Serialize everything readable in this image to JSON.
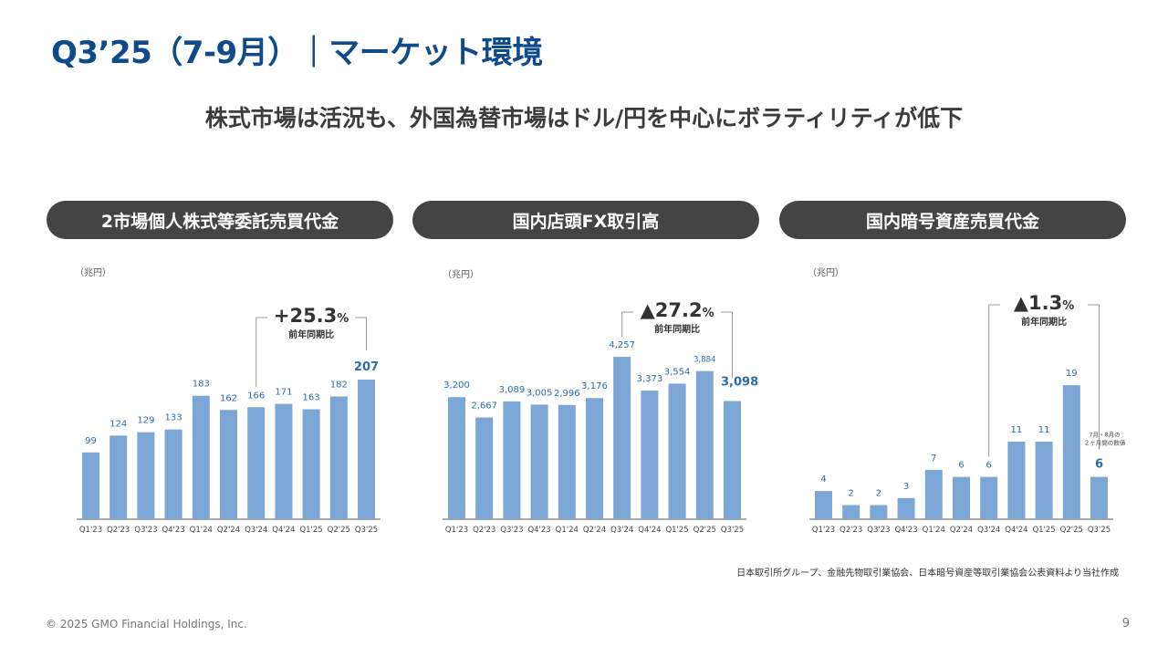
{
  "header": {
    "title": "Q3’25（7-9月）｜マーケット環境",
    "subtitle": "株式市場は活況も、外国為替市場はドル/円を中心にボラティリティが低下"
  },
  "colors": {
    "bar": "#7ba6d6",
    "label": "#2b6cb0",
    "title": "#0f4a8a",
    "pill": "#444444"
  },
  "chart_data": [
    {
      "type": "bar",
      "title": "2市場個人株式等委託売買代金",
      "unit": "（兆円）",
      "categories": [
        "Q1'23",
        "Q2'23",
        "Q3'23",
        "Q4'23",
        "Q1'24",
        "Q2'24",
        "Q3'24",
        "Q4'24",
        "Q1'25",
        "Q2'25",
        "Q3'25"
      ],
      "values": [
        99,
        124,
        129,
        133,
        183,
        162,
        166,
        171,
        163,
        182,
        207
      ],
      "value_labels": [
        "99",
        "124",
        "129",
        "133",
        "183",
        "162",
        "166",
        "171",
        "163",
        "182",
        "207"
      ],
      "ylim": [
        0,
        230
      ],
      "highlight_last": true,
      "yoy": {
        "main": "+25.3",
        "pct": "%",
        "label": "前年同期比",
        "from_index": 6,
        "to_index": 10
      }
    },
    {
      "type": "bar",
      "title": "国内店頭FX取引高",
      "unit": "（兆円）",
      "categories": [
        "Q1'23",
        "Q2'23",
        "Q3'23",
        "Q4'23",
        "Q1'24",
        "Q2'24",
        "Q3'24",
        "Q4'24",
        "Q1'25",
        "Q2'25",
        "Q3'25"
      ],
      "values": [
        3200,
        2667,
        3089,
        3005,
        2996,
        3176,
        4257,
        3373,
        3554,
        3884,
        3098
      ],
      "value_labels": [
        "3,200",
        "2,667",
        "3,089",
        "3,005",
        "2,996",
        "3,176",
        "4,257",
        "3,373",
        "3,554",
        "3,884",
        "3,098"
      ],
      "ylim": [
        0,
        5000
      ],
      "highlight_last": true,
      "yoy": {
        "main": "▲27.2",
        "pct": "%",
        "label": "前年同期比",
        "from_index": 6,
        "to_index": 10
      }
    },
    {
      "type": "bar",
      "title": "国内暗号資産売買代金",
      "unit": "（兆円）",
      "categories": [
        "Q1'23",
        "Q2'23",
        "Q3'23",
        "Q4'23",
        "Q1'24",
        "Q2'24",
        "Q3'24",
        "Q4'24",
        "Q1'25",
        "Q2'25",
        "Q3'25"
      ],
      "values": [
        4,
        2,
        2,
        3,
        7,
        6,
        6,
        11,
        11,
        19,
        6
      ],
      "value_labels": [
        "4",
        "2",
        "2",
        "3",
        "7",
        "6",
        "6",
        "11",
        "11",
        "19",
        "6"
      ],
      "ylim": [
        0,
        22
      ],
      "highlight_last": true,
      "yoy": {
        "main": "▲1.3",
        "pct": "%",
        "label": "前年同期比",
        "from_index": 6,
        "to_index": 10
      },
      "note": [
        "7月・8月の",
        "２ヶ月間の数値"
      ]
    }
  ],
  "source_note": "日本取引所グループ、金融先物取引業協会、日本暗号資産等取引業協会公表資料より当社作成",
  "footer": {
    "copyright": "© 2025 GMO Financial Holdings, Inc.",
    "page_number": "9"
  }
}
